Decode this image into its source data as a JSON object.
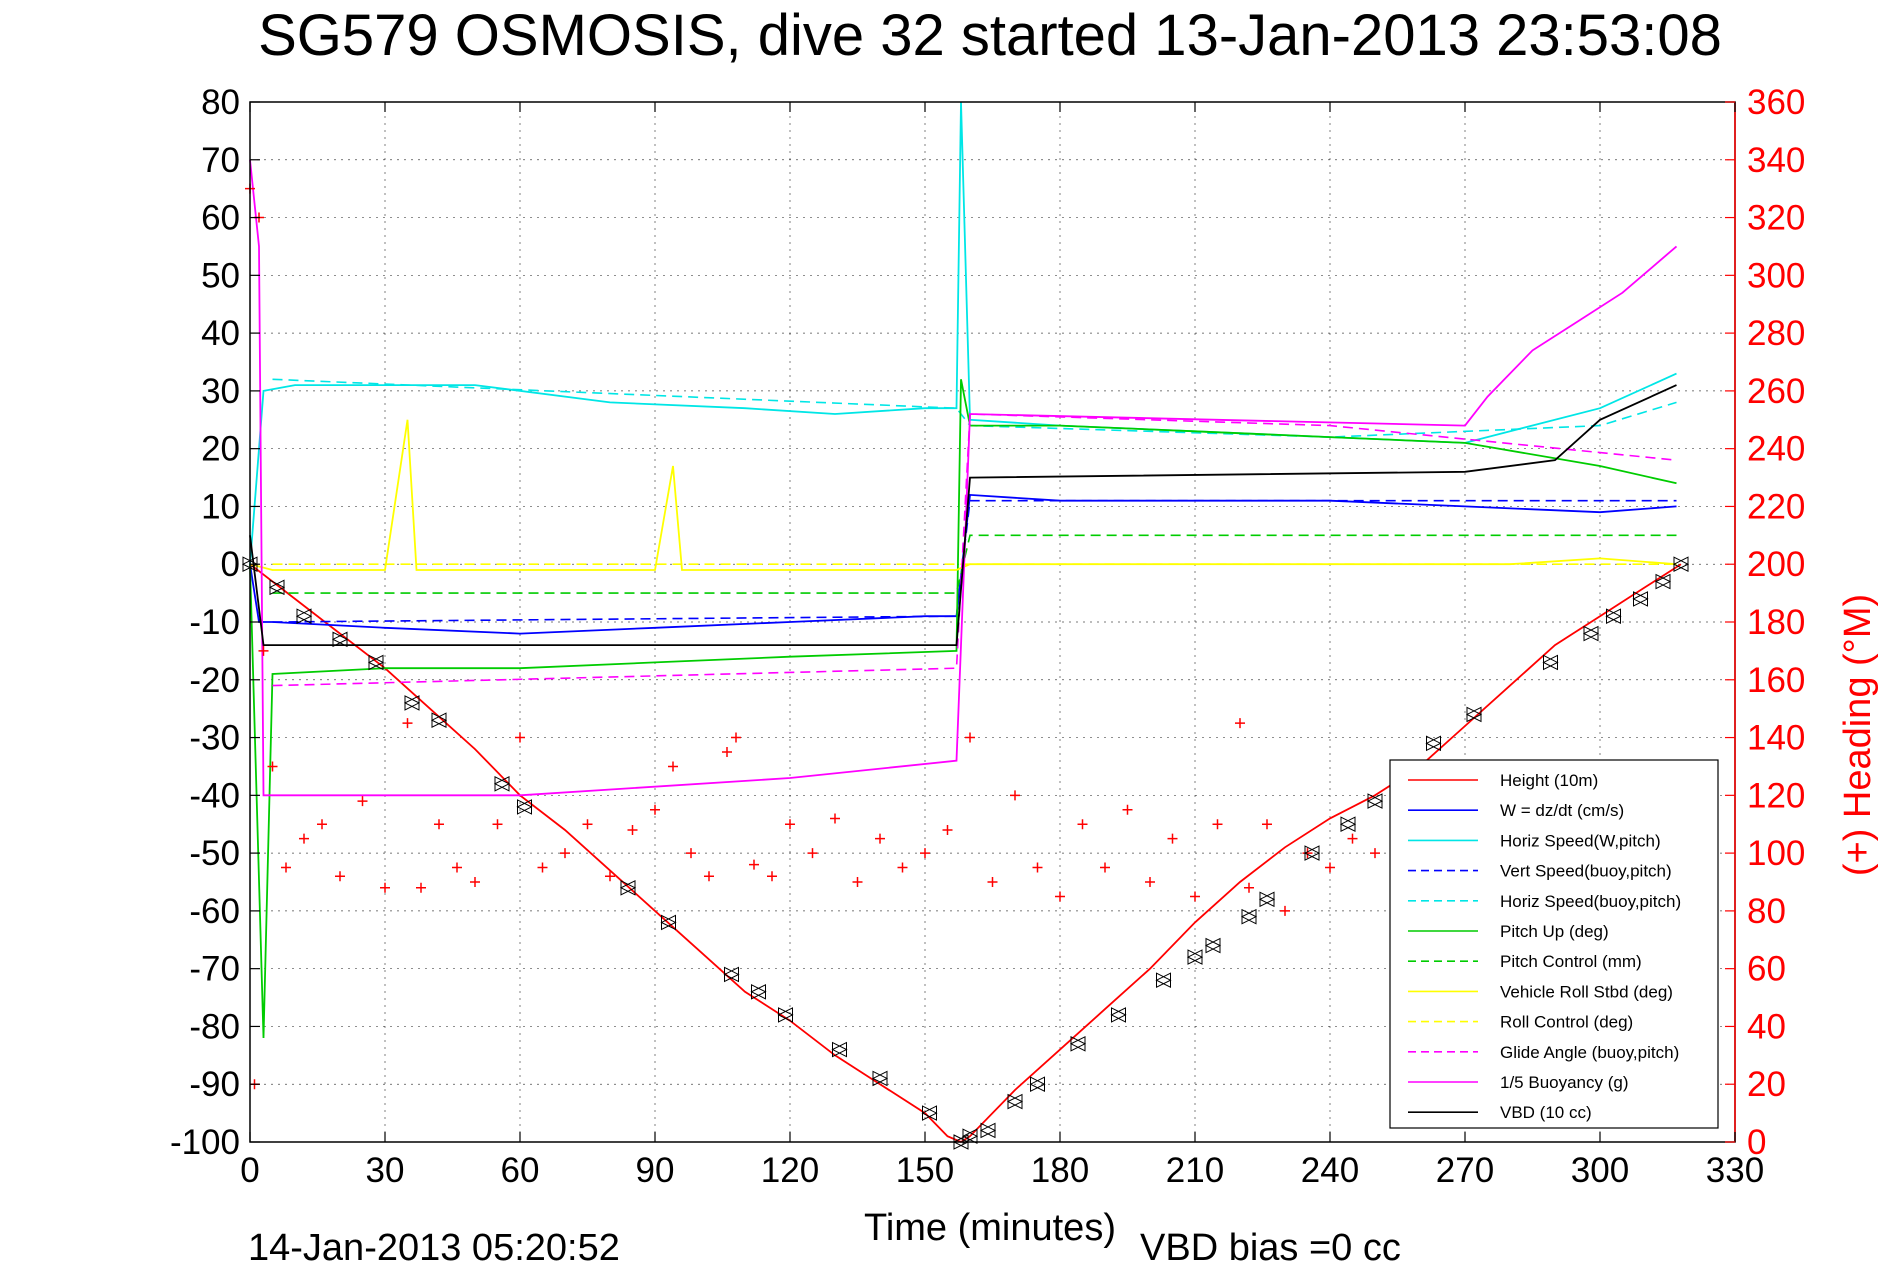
{
  "chart_data": {
    "type": "line",
    "title": "SG579 OSMOSIS, dive 32 started 13-Jan-2013 23:53:08",
    "xlabel": "Time (minutes)",
    "ylabel": "",
    "ylabel_right": "(+) Heading (°M)",
    "xlim": [
      0,
      330
    ],
    "ylim": [
      -100,
      80
    ],
    "ylim_right": [
      0,
      360
    ],
    "x_ticks": [
      0,
      30,
      60,
      90,
      120,
      150,
      180,
      210,
      240,
      270,
      300,
      330
    ],
    "y_ticks": [
      -100,
      -90,
      -80,
      -70,
      -60,
      -50,
      -40,
      -30,
      -20,
      -10,
      0,
      10,
      20,
      30,
      40,
      50,
      60,
      70,
      80
    ],
    "y_ticks_right": [
      0,
      20,
      40,
      60,
      80,
      100,
      120,
      140,
      160,
      180,
      200,
      220,
      240,
      260,
      280,
      300,
      320,
      340,
      360
    ],
    "grid": true,
    "legend_position": "bottom-right",
    "footer_left": "14-Jan-2013 05:20:52",
    "footer_right": "VBD bias =0 cc",
    "series": [
      {
        "name": "Height (10m)",
        "color": "#ff0000",
        "style": "solid",
        "x": [
          0,
          10,
          20,
          30,
          40,
          50,
          60,
          70,
          80,
          90,
          100,
          110,
          120,
          130,
          140,
          150,
          155,
          158,
          160,
          170,
          180,
          190,
          200,
          210,
          220,
          230,
          240,
          250,
          260,
          270,
          280,
          290,
          300,
          310,
          318
        ],
        "y": [
          0,
          -6,
          -12,
          -18,
          -25,
          -32,
          -40,
          -46,
          -53,
          -60,
          -67,
          -74,
          -79,
          -85,
          -90,
          -95,
          -99,
          -100,
          -99,
          -91,
          -84,
          -77,
          -70,
          -62,
          -55,
          -49,
          -44,
          -40,
          -35,
          -28,
          -21,
          -14,
          -9,
          -4,
          0
        ]
      },
      {
        "name": "W = dz/dt (cm/s)",
        "color": "#0000ff",
        "style": "solid",
        "x": [
          0,
          2,
          5,
          30,
          60,
          90,
          120,
          150,
          157,
          160,
          180,
          210,
          240,
          270,
          300,
          317
        ],
        "y": [
          0,
          -10,
          -10,
          -11,
          -12,
          -11,
          -10,
          -9,
          -9,
          12,
          11,
          11,
          11,
          10,
          9,
          10
        ]
      },
      {
        "name": "Horiz Speed(W,pitch)",
        "color": "#00e6e6",
        "style": "solid",
        "x": [
          0,
          3,
          10,
          30,
          50,
          80,
          110,
          130,
          150,
          157,
          158,
          160,
          180,
          210,
          240,
          270,
          300,
          317
        ],
        "y": [
          0,
          30,
          31,
          31,
          31,
          28,
          27,
          26,
          27,
          27,
          80,
          25,
          24,
          23,
          22,
          21,
          27,
          33
        ]
      },
      {
        "name": "Vert Speed(buoy,pitch)",
        "color": "#0000ff",
        "style": "dashed",
        "x": [
          5,
          157,
          160,
          317
        ],
        "y": [
          -10,
          -9,
          11,
          11
        ]
      },
      {
        "name": "Horiz Speed(buoy,pitch)",
        "color": "#00e6e6",
        "style": "dashed",
        "x": [
          5,
          157,
          160,
          240,
          300,
          317
        ],
        "y": [
          32,
          27,
          24,
          22,
          24,
          28
        ]
      },
      {
        "name": "Pitch Up (deg)",
        "color": "#00cc00",
        "style": "solid",
        "x": [
          0,
          3,
          5,
          30,
          60,
          90,
          120,
          157,
          158,
          160,
          180,
          210,
          240,
          270,
          300,
          317
        ],
        "y": [
          0,
          -82,
          -19,
          -18,
          -18,
          -17,
          -16,
          -15,
          32,
          24,
          24,
          23,
          22,
          21,
          17,
          14
        ]
      },
      {
        "name": "Pitch Control (mm)",
        "color": "#00cc00",
        "style": "dashed",
        "x": [
          5,
          157,
          160,
          317
        ],
        "y": [
          -5,
          -5,
          5,
          5
        ]
      },
      {
        "name": "Vehicle Roll Stbd (deg)",
        "color": "#ffff00",
        "style": "solid",
        "x": [
          0,
          5,
          30,
          35,
          37,
          60,
          90,
          94,
          96,
          120,
          150,
          157,
          160,
          180,
          200,
          220,
          240,
          260,
          280,
          300,
          317
        ],
        "y": [
          0,
          -1,
          -1,
          25,
          -1,
          -1,
          -1,
          17,
          -1,
          -1,
          -1,
          -1,
          0,
          0,
          0,
          0,
          0,
          0,
          0,
          1,
          0
        ]
      },
      {
        "name": "Roll Control (deg)",
        "color": "#ffff00",
        "style": "dashed",
        "x": [
          5,
          157,
          160,
          317
        ],
        "y": [
          0,
          0,
          0,
          0
        ]
      },
      {
        "name": "Glide Angle (buoy,pitch)",
        "color": "#ff00ff",
        "style": "dashed",
        "x": [
          5,
          157,
          160,
          240,
          317
        ],
        "y": [
          -21,
          -18,
          26,
          24,
          18
        ]
      },
      {
        "name": "1/5 Buoyancy (g)",
        "color": "#ff00ff",
        "style": "solid",
        "x": [
          0,
          2,
          3,
          60,
          120,
          157,
          160,
          270,
          275,
          285,
          295,
          305,
          317
        ],
        "y": [
          70,
          55,
          -40,
          -40,
          -37,
          -34,
          26,
          24,
          29,
          37,
          42,
          47,
          55
        ]
      },
      {
        "name": "VBD (10 cc)",
        "color": "#000000",
        "style": "solid",
        "x": [
          0,
          3,
          157,
          160,
          270,
          290,
          300,
          317
        ],
        "y": [
          5,
          -14,
          -14,
          15,
          16,
          18,
          25,
          31
        ]
      }
    ],
    "heading_series": {
      "axis": "right",
      "color": "#ff0000",
      "marker": "+",
      "x": [
        0,
        1,
        2,
        3,
        5,
        8,
        12,
        16,
        20,
        25,
        30,
        35,
        38,
        42,
        46,
        50,
        55,
        60,
        65,
        70,
        75,
        80,
        85,
        90,
        94,
        98,
        102,
        106,
        108,
        112,
        116,
        120,
        125,
        130,
        135,
        140,
        145,
        150,
        155,
        160,
        165,
        170,
        175,
        180,
        185,
        190,
        195,
        200,
        205,
        210,
        215,
        220,
        222,
        226,
        230,
        235,
        240,
        245,
        250,
        255,
        260,
        265,
        270,
        275,
        280,
        285,
        290,
        295,
        300,
        305,
        310,
        315
      ],
      "y": [
        330,
        20,
        320,
        170,
        130,
        95,
        105,
        110,
        92,
        118,
        88,
        145,
        88,
        110,
        95,
        90,
        110,
        140,
        95,
        100,
        110,
        92,
        108,
        115,
        130,
        100,
        92,
        135,
        140,
        96,
        92,
        110,
        100,
        112,
        90,
        105,
        95,
        100,
        108,
        140,
        90,
        120,
        95,
        85,
        110,
        95,
        115,
        90,
        105,
        85,
        110,
        145,
        88,
        110,
        80,
        100,
        95,
        105,
        100,
        110,
        90,
        105,
        100,
        112,
        95,
        108,
        100,
        115,
        95,
        110,
        100,
        105
      ]
    },
    "height_markers": {
      "x": [
        0,
        6,
        12,
        20,
        28,
        36,
        42,
        56,
        61,
        84,
        93,
        107,
        113,
        119,
        131,
        140,
        151,
        158,
        160,
        164,
        170,
        175,
        184,
        193,
        203,
        210,
        214,
        222,
        226,
        236,
        244,
        250,
        256,
        263,
        272,
        289,
        298,
        303,
        309,
        314,
        318
      ],
      "y": [
        0,
        -4,
        -9,
        -13,
        -17,
        -24,
        -27,
        -38,
        -42,
        -56,
        -62,
        -71,
        -74,
        -78,
        -84,
        -89,
        -95,
        -100,
        -99,
        -98,
        -93,
        -90,
        -83,
        -78,
        -72,
        -68,
        -66,
        -61,
        -58,
        -50,
        -45,
        -41,
        -36,
        -31,
        -26,
        -17,
        -12,
        -9,
        -6,
        -3,
        0
      ]
    }
  }
}
